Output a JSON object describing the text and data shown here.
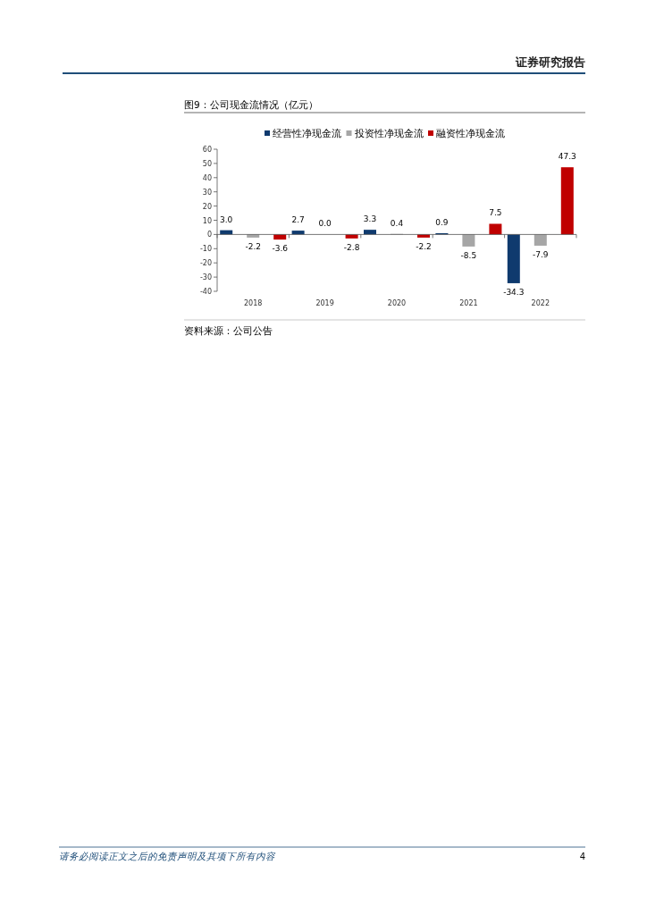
{
  "chart_data": {
    "type": "bar",
    "title": "图9：公司现金流情况（亿元）",
    "annotations": [
      "证券研究报告",
      "资料来源：公司公告",
      "请务必阅读正文之后的免责声明及其项下所有内容",
      "4"
    ],
    "categories": [
      "2018",
      "2019",
      "2020",
      "2021",
      "2022"
    ],
    "series": [
      {
        "name": "经营性净现金流",
        "color": "#0f3a6e",
        "values": [
          3.0,
          2.7,
          3.3,
          0.9,
          -34.3
        ],
        "value_labels": [
          "3.0",
          "2.7",
          "3.3",
          "0.9",
          "-34.3"
        ]
      },
      {
        "name": "投资性净现金流",
        "color": "#a6a6a6",
        "values": [
          -2.2,
          0.0,
          0.4,
          -8.5,
          -7.9
        ],
        "value_labels": [
          "-2.2",
          "0.0",
          "0.4",
          "-8.5",
          "-7.9"
        ]
      },
      {
        "name": "融资性净现金流",
        "color": "#c00000",
        "values": [
          -3.6,
          -2.8,
          -2.2,
          7.5,
          47.3
        ],
        "value_labels": [
          "-3.6",
          "-2.8",
          "-2.2",
          "7.5",
          "47.3"
        ]
      }
    ],
    "ylim": [
      -40,
      60
    ],
    "yticks": [
      -40,
      -30,
      -20,
      -10,
      0,
      10,
      20,
      30,
      40,
      50,
      60
    ],
    "legend": "top"
  }
}
